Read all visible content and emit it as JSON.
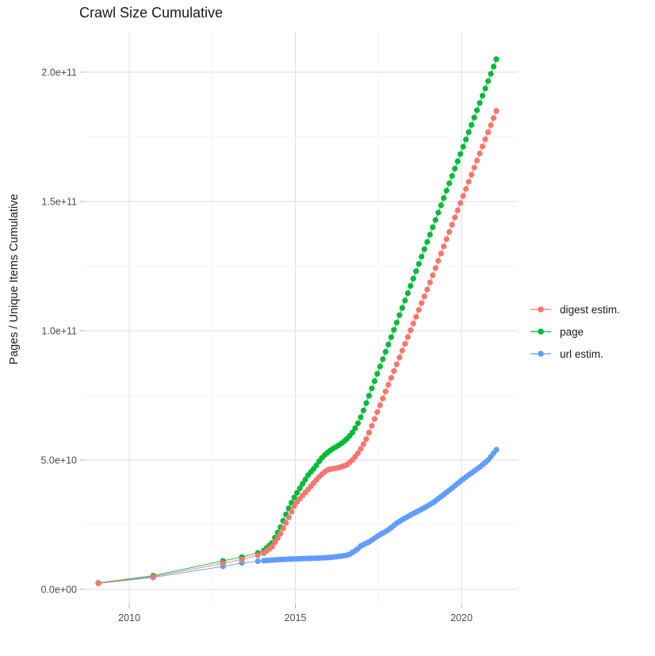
{
  "title": "Crawl Size Cumulative",
  "axes": {
    "y_title": "Pages / Unique Items Cumulative",
    "y_tick_labels": [
      "0.0e+00",
      "5.0e+10",
      "1.0e+11",
      "1.5e+11",
      "2.0e+11"
    ],
    "y_tick_values_e9": [
      0,
      50,
      100,
      150,
      200
    ],
    "x_tick_labels": [
      "2010",
      "2015",
      "2020"
    ],
    "x_tick_values": [
      2010,
      2015,
      2020
    ]
  },
  "legend": {
    "items": [
      {
        "label": "digest estim.",
        "color": "#F8766D"
      },
      {
        "label": "page",
        "color": "#00BA38"
      },
      {
        "label": "url estim.",
        "color": "#619CFF"
      }
    ]
  },
  "colors": {
    "digest": "#F8766D",
    "page": "#00BA38",
    "url": "#619CFF",
    "grid_major": "#E4E4E4",
    "grid_minor": "#F2F2F2",
    "tick": "#B3B3B3",
    "axis_text": "#4d4d4d",
    "title_text": "#1a1a1a"
  },
  "chart_data": {
    "type": "line",
    "subtype": "scatter-line cumulative time series",
    "title": "Crawl Size Cumulative",
    "xlabel": "",
    "ylabel": "Pages / Unique Items Cumulative",
    "x_range_years": [
      2008.6,
      2021.7
    ],
    "ylim": [
      0,
      216000000000
    ],
    "value_unit_pages": 1000000000,
    "grid": true,
    "legend_position": "right",
    "x_grid_major_years": [
      2010,
      2015,
      2020
    ],
    "x_grid_minor_years": [
      2012.5,
      2017.5
    ],
    "y_grid_major_e9": [
      0,
      50,
      100,
      150,
      200
    ],
    "y_grid_minor_e9": [
      25,
      75,
      125,
      175
    ],
    "point_interval_years": 0.08333,
    "dense_start_year": 2014.05,
    "end_year": 2021.05,
    "draw_order": [
      2,
      1,
      0
    ],
    "series": [
      {
        "name": "digest estim.",
        "color": "#F8766D",
        "anchors_year_value_e9": [
          [
            2009.07,
            2.4
          ],
          [
            2010.72,
            4.9
          ],
          [
            2012.82,
            10.1
          ],
          [
            2013.39,
            11.6
          ],
          [
            2013.87,
            13.2
          ],
          [
            2014.05,
            14.0
          ],
          [
            2014.3,
            16.5
          ],
          [
            2014.55,
            21.5
          ],
          [
            2014.75,
            26.5
          ],
          [
            2014.92,
            31.0
          ],
          [
            2015.0,
            33.0
          ],
          [
            2015.2,
            36.1
          ],
          [
            2015.4,
            38.8
          ],
          [
            2015.6,
            41.9
          ],
          [
            2015.75,
            44.0
          ],
          [
            2015.9,
            45.6
          ],
          [
            2016.0,
            46.4
          ],
          [
            2016.2,
            46.8
          ],
          [
            2016.4,
            47.4
          ],
          [
            2016.55,
            48.2
          ],
          [
            2016.7,
            49.8
          ],
          [
            2016.85,
            52.0
          ],
          [
            2017.0,
            55.0
          ],
          [
            2017.15,
            58.5
          ],
          [
            2018.0,
            85.5
          ],
          [
            2019.0,
            117.0
          ],
          [
            2020.0,
            150.5
          ],
          [
            2021.05,
            185.0
          ]
        ]
      },
      {
        "name": "page",
        "color": "#00BA38",
        "anchors_year_value_e9": [
          [
            2009.07,
            2.5
          ],
          [
            2010.72,
            5.3
          ],
          [
            2012.82,
            11.0
          ],
          [
            2013.39,
            12.5
          ],
          [
            2013.87,
            14.1
          ],
          [
            2014.05,
            15.0
          ],
          [
            2014.3,
            18.0
          ],
          [
            2014.55,
            24.0
          ],
          [
            2014.75,
            30.0
          ],
          [
            2014.92,
            34.5
          ],
          [
            2015.0,
            36.3
          ],
          [
            2015.2,
            40.5
          ],
          [
            2015.4,
            44.5
          ],
          [
            2015.6,
            47.3
          ],
          [
            2015.75,
            50.2
          ],
          [
            2015.9,
            52.2
          ],
          [
            2016.1,
            54.2
          ],
          [
            2016.3,
            55.7
          ],
          [
            2016.5,
            57.5
          ],
          [
            2016.7,
            60.3
          ],
          [
            2016.85,
            63.3
          ],
          [
            2017.0,
            67.5
          ],
          [
            2018.0,
            101.5
          ],
          [
            2019.0,
            135.5
          ],
          [
            2020.0,
            169.5
          ],
          [
            2021.05,
            205.0
          ]
        ]
      },
      {
        "name": "url estim.",
        "color": "#619CFF",
        "anchors_year_value_e9": [
          [
            2009.07,
            2.3
          ],
          [
            2010.72,
            4.6
          ],
          [
            2012.82,
            8.9
          ],
          [
            2013.39,
            10.2
          ],
          [
            2013.87,
            10.9
          ],
          [
            2014.05,
            11.1
          ],
          [
            2014.5,
            11.5
          ],
          [
            2015.0,
            11.8
          ],
          [
            2015.5,
            12.0
          ],
          [
            2016.0,
            12.3
          ],
          [
            2016.35,
            12.8
          ],
          [
            2016.6,
            13.3
          ],
          [
            2016.72,
            14.3
          ],
          [
            2016.85,
            15.3
          ],
          [
            2016.97,
            16.8
          ],
          [
            2017.21,
            18.3
          ],
          [
            2017.5,
            20.8
          ],
          [
            2017.8,
            23.0
          ],
          [
            2018.05,
            25.6
          ],
          [
            2018.2,
            26.8
          ],
          [
            2018.5,
            29.0
          ],
          [
            2018.85,
            31.3
          ],
          [
            2019.15,
            33.6
          ],
          [
            2019.45,
            36.5
          ],
          [
            2019.7,
            39.0
          ],
          [
            2020.0,
            42.2
          ],
          [
            2020.3,
            45.0
          ],
          [
            2020.55,
            47.3
          ],
          [
            2020.8,
            50.0
          ],
          [
            2021.05,
            54.0
          ]
        ]
      }
    ]
  }
}
